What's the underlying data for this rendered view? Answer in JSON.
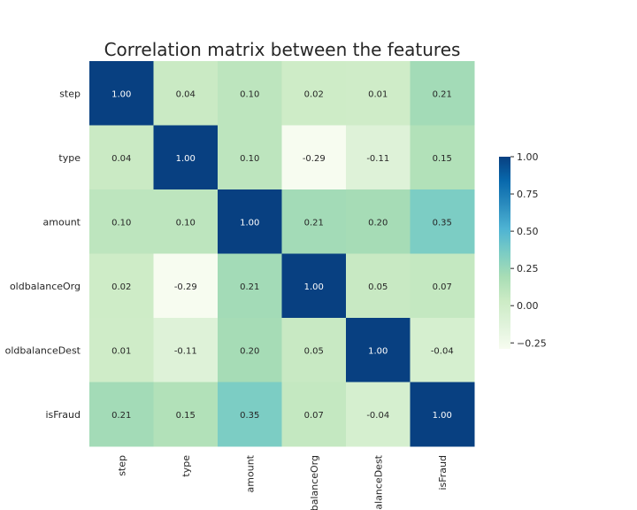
{
  "chart_data": {
    "type": "heatmap",
    "title": "Correlation matrix between the features",
    "row_labels": [
      "step",
      "type",
      "amount",
      "oldbalanceOrg",
      "oldbalanceDest",
      "isFraud"
    ],
    "col_labels": [
      "step",
      "type",
      "amount",
      "oldbalanceOrg",
      "oldbalanceDest",
      "isFraud"
    ],
    "values": [
      [
        1.0,
        0.04,
        0.1,
        0.02,
        0.01,
        0.21
      ],
      [
        0.04,
        1.0,
        0.1,
        -0.29,
        -0.11,
        0.15
      ],
      [
        0.1,
        0.1,
        1.0,
        0.21,
        0.2,
        0.35
      ],
      [
        0.02,
        -0.29,
        0.21,
        1.0,
        0.05,
        0.07
      ],
      [
        0.01,
        -0.11,
        0.2,
        0.05,
        1.0,
        -0.04
      ],
      [
        0.21,
        0.15,
        0.35,
        0.07,
        -0.04,
        1.0
      ]
    ],
    "value_format": "2 decimals",
    "colormap": "GnBu",
    "vmin": -0.29,
    "vmax": 1.0,
    "colorbar": {
      "ticks": [
        1.0,
        0.75,
        0.5,
        0.25,
        0.0,
        -0.25
      ],
      "tick_labels": [
        "1.00",
        "0.75",
        "0.50",
        "0.25",
        "0.00",
        "−0.25"
      ],
      "placement": "right"
    },
    "grid": false,
    "legend": "none"
  }
}
